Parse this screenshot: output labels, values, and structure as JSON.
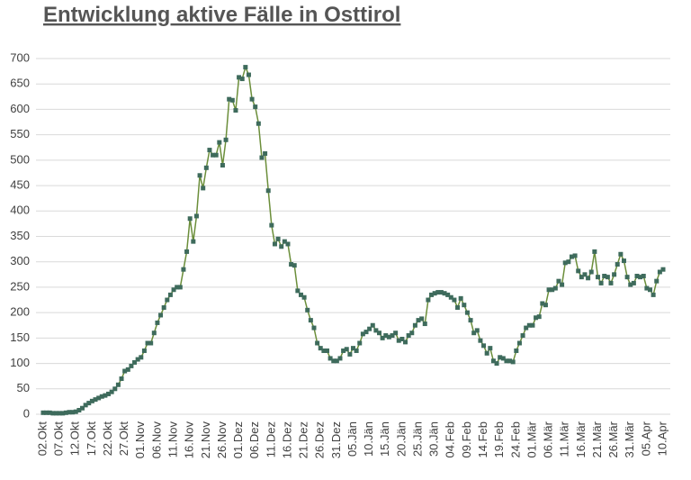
{
  "chart_data": {
    "type": "line",
    "title": "Entwicklung aktive Fälle in Osttirol",
    "categories": [
      "02.Okt",
      null,
      null,
      null,
      null,
      "07.Okt",
      null,
      null,
      null,
      null,
      "12.Okt",
      null,
      null,
      null,
      null,
      "17.Okt",
      null,
      null,
      null,
      null,
      "22.Okt",
      null,
      null,
      null,
      null,
      "27.Okt",
      null,
      null,
      null,
      null,
      "01.Nov",
      null,
      null,
      null,
      null,
      "06.Nov",
      null,
      null,
      null,
      null,
      "11.Nov",
      null,
      null,
      null,
      null,
      "16.Nov",
      null,
      null,
      null,
      null,
      "21.Nov",
      null,
      null,
      null,
      null,
      "26.Nov",
      null,
      null,
      null,
      null,
      "01.Dez",
      null,
      null,
      null,
      null,
      "06.Dez",
      null,
      null,
      null,
      null,
      "11.Dez",
      null,
      null,
      null,
      null,
      "16.Dez",
      null,
      null,
      null,
      null,
      "21.Dez",
      null,
      null,
      null,
      null,
      "26.Dez",
      null,
      null,
      null,
      null,
      "31.Dez",
      null,
      null,
      null,
      null,
      "05.Jän",
      null,
      null,
      null,
      null,
      "10.Jän",
      null,
      null,
      null,
      null,
      "15.Jän",
      null,
      null,
      null,
      null,
      "20.Jän",
      null,
      null,
      null,
      null,
      "25.Jän",
      null,
      null,
      null,
      null,
      "30.Jän",
      null,
      null,
      null,
      null,
      "04.Feb",
      null,
      null,
      null,
      null,
      "09.Feb",
      null,
      null,
      null,
      null,
      "14.Feb",
      null,
      null,
      null,
      null,
      "19.Feb",
      null,
      null,
      null,
      null,
      "24.Feb",
      null,
      null,
      null,
      null,
      "01.Mär",
      null,
      null,
      null,
      null,
      "06.Mär",
      null,
      null,
      null,
      null,
      "11.Mär",
      null,
      null,
      null,
      null,
      "16.Mär",
      null,
      null,
      null,
      null,
      "21.Mär",
      null,
      null,
      null,
      null,
      "26.Mär",
      null,
      null,
      null,
      null,
      "31.Mär",
      null,
      null,
      null,
      null,
      "05.Apr",
      null,
      null,
      null,
      null,
      "10.Apr"
    ],
    "values": [
      3,
      3,
      3,
      2,
      2,
      2,
      2,
      3,
      4,
      4,
      5,
      8,
      12,
      18,
      22,
      26,
      29,
      32,
      35,
      37,
      40,
      44,
      50,
      58,
      70,
      85,
      88,
      95,
      102,
      108,
      112,
      125,
      140,
      140,
      160,
      180,
      195,
      210,
      225,
      235,
      245,
      250,
      250,
      285,
      320,
      385,
      340,
      390,
      470,
      445,
      485,
      520,
      510,
      510,
      535,
      490,
      540,
      620,
      618,
      598,
      663,
      660,
      683,
      668,
      620,
      605,
      572,
      505,
      513,
      440,
      372,
      335,
      345,
      330,
      340,
      335,
      295,
      293,
      243,
      235,
      230,
      205,
      185,
      170,
      140,
      130,
      125,
      125,
      110,
      105,
      105,
      110,
      125,
      128,
      118,
      130,
      125,
      140,
      158,
      162,
      168,
      175,
      165,
      160,
      150,
      155,
      152,
      155,
      160,
      145,
      148,
      142,
      155,
      160,
      175,
      185,
      188,
      178,
      225,
      235,
      238,
      240,
      240,
      238,
      235,
      230,
      225,
      210,
      228,
      215,
      200,
      185,
      160,
      165,
      145,
      135,
      120,
      130,
      105,
      100,
      112,
      110,
      105,
      105,
      103,
      125,
      140,
      155,
      170,
      175,
      175,
      190,
      192,
      218,
      215,
      245,
      245,
      248,
      262,
      255,
      298,
      300,
      310,
      312,
      282,
      270,
      275,
      268,
      280,
      320,
      270,
      258,
      272,
      270,
      258,
      275,
      295,
      315,
      302,
      270,
      255,
      258,
      272,
      270,
      272,
      248,
      245,
      235,
      262,
      280,
      285
    ],
    "color": "#6b8e3a",
    "marker_color": "#3e6b5c",
    "ylim": [
      0,
      700
    ],
    "yticks": [
      0,
      50,
      100,
      150,
      200,
      250,
      300,
      350,
      400,
      450,
      500,
      550,
      600,
      650,
      700
    ],
    "grid": true
  }
}
